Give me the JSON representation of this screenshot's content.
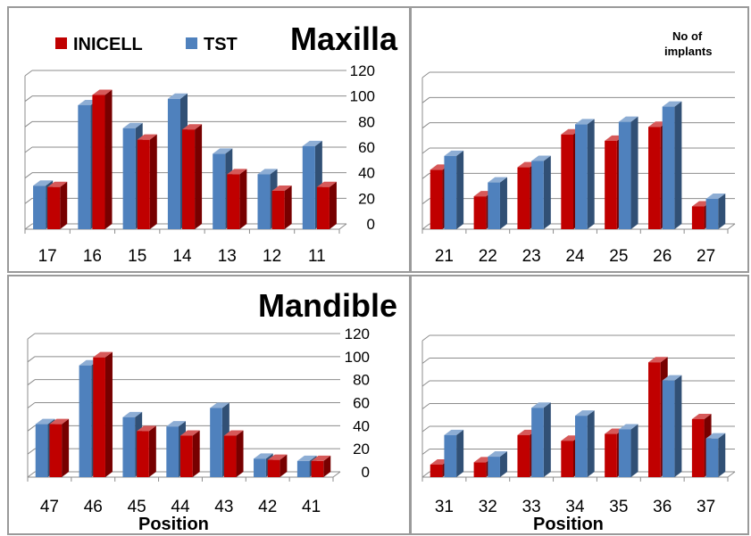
{
  "colors": {
    "inicell": "#c00000",
    "tst": "#4f81bd"
  },
  "legend": {
    "inicell_label": "INICELL",
    "tst_label": "TST"
  },
  "headings": {
    "maxilla": "Maxilla",
    "mandible": "Mandible",
    "implants_line1": "No of",
    "implants_line2": "implants"
  },
  "axis": {
    "ticks": [
      "0",
      "20",
      "40",
      "60",
      "80",
      "100",
      "120"
    ],
    "position_label": "Position"
  },
  "chart_data": [
    {
      "type": "bar",
      "categories": [
        "17",
        "16",
        "15",
        "14",
        "13",
        "12",
        "11"
      ],
      "series": [
        {
          "name": "INICELL",
          "values": [
            33,
            105,
            70,
            78,
            43,
            30,
            33
          ]
        },
        {
          "name": "TST",
          "values": [
            34,
            97,
            79,
            102,
            59,
            43,
            65
          ]
        }
      ],
      "ylim": [
        0,
        120
      ]
    },
    {
      "type": "bar",
      "categories": [
        "21",
        "22",
        "23",
        "24",
        "25",
        "26",
        "27"
      ],
      "series": [
        {
          "name": "INICELL",
          "values": [
            47,
            26,
            49,
            75,
            70,
            81,
            18
          ]
        },
        {
          "name": "TST",
          "values": [
            58,
            37,
            54,
            83,
            85,
            97,
            24
          ]
        }
      ],
      "ylim": [
        0,
        120
      ]
    },
    {
      "type": "bar",
      "categories": [
        "47",
        "46",
        "45",
        "44",
        "43",
        "42",
        "41"
      ],
      "series": [
        {
          "name": "INICELL",
          "values": [
            46,
            104,
            40,
            36,
            36,
            15,
            14
          ]
        },
        {
          "name": "TST",
          "values": [
            46,
            97,
            52,
            44,
            60,
            16,
            14
          ]
        }
      ],
      "ylim": [
        0,
        120
      ]
    },
    {
      "type": "bar",
      "categories": [
        "31",
        "32",
        "33",
        "34",
        "35",
        "36",
        "37"
      ],
      "series": [
        {
          "name": "INICELL",
          "values": [
            11,
            13,
            37,
            32,
            38,
            101,
            51
          ]
        },
        {
          "name": "TST",
          "values": [
            37,
            18,
            61,
            54,
            42,
            85,
            34
          ]
        }
      ],
      "ylim": [
        0,
        120
      ]
    }
  ]
}
